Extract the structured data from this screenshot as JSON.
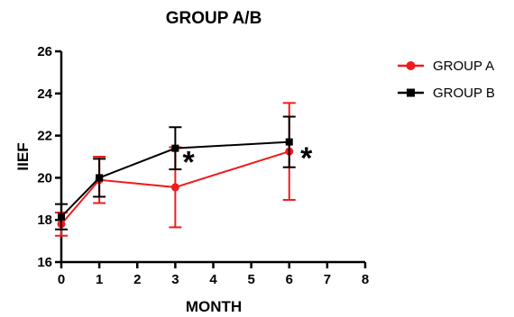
{
  "chart_data": {
    "type": "line",
    "title": "GROUP A/B",
    "xlabel": "MONTH",
    "ylabel": "IIEF",
    "xlim": [
      0,
      8
    ],
    "ylim": [
      16,
      26
    ],
    "x_ticks": [
      0,
      1,
      2,
      3,
      4,
      5,
      6,
      7,
      8
    ],
    "y_ticks": [
      16,
      18,
      20,
      22,
      24,
      26
    ],
    "grid": false,
    "legend_position": "right",
    "series": [
      {
        "name": "GROUP A",
        "color": "#ee1c1c",
        "marker": "circle",
        "x": [
          0,
          1,
          3,
          6
        ],
        "y": [
          17.8,
          19.9,
          19.55,
          21.25
        ],
        "err": [
          0.55,
          1.1,
          1.9,
          2.3
        ]
      },
      {
        "name": "GROUP B",
        "color": "#000000",
        "marker": "square",
        "x": [
          0,
          1,
          3,
          6
        ],
        "y": [
          18.15,
          20.0,
          21.4,
          21.7
        ],
        "err": [
          0.6,
          0.9,
          1.0,
          1.2
        ]
      }
    ],
    "annotations": [
      {
        "text": "*",
        "x": 3.35,
        "y": 21.1
      },
      {
        "text": "*",
        "x": 6.45,
        "y": 21.3
      }
    ]
  }
}
